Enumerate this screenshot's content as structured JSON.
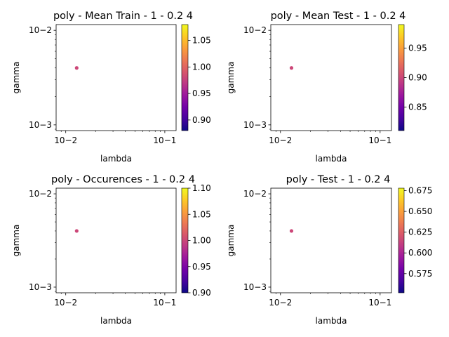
{
  "figure": {
    "background": "#ffffff"
  },
  "colormap": {
    "name": "plasma",
    "stops": [
      "#0d0887",
      "#46039f",
      "#7201a8",
      "#9c179e",
      "#bd3786",
      "#d8576b",
      "#ed7953",
      "#fb9f3a",
      "#fdca26",
      "#f0f921"
    ]
  },
  "chart_data": [
    {
      "type": "scatter",
      "title": "poly - Mean Train - 1 - 0.2 4",
      "xlabel": "lambda",
      "ylabel": "gamma",
      "xscale": "log",
      "yscale": "log",
      "xlim": [
        0.008,
        0.13
      ],
      "ylim": [
        0.00087,
        0.0115
      ],
      "xticks": [
        {
          "value": 0.01,
          "label": "10−2"
        },
        {
          "value": 0.1,
          "label": "10−1"
        }
      ],
      "yticks": [
        {
          "value": 0.001,
          "label": "10−3"
        },
        {
          "value": 0.01,
          "label": "10−2"
        }
      ],
      "points": [
        {
          "x": 0.0129,
          "y": 0.004,
          "value": 0.98,
          "color": "#cc4778"
        }
      ],
      "colorbar": {
        "range": [
          0.88,
          1.08
        ],
        "ticks": [
          {
            "value": 0.9,
            "label": "0.90"
          },
          {
            "value": 0.95,
            "label": "0.95"
          },
          {
            "value": 1.0,
            "label": "1.00"
          },
          {
            "value": 1.05,
            "label": "1.05"
          }
        ]
      }
    },
    {
      "type": "scatter",
      "title": "poly - Mean Test - 1 - 0.2 4",
      "xlabel": "lambda",
      "ylabel": "gamma",
      "xscale": "log",
      "yscale": "log",
      "xlim": [
        0.008,
        0.13
      ],
      "ylim": [
        0.00087,
        0.0115
      ],
      "xticks": [
        {
          "value": 0.01,
          "label": "10−2"
        },
        {
          "value": 0.1,
          "label": "10−1"
        }
      ],
      "yticks": [
        {
          "value": 0.001,
          "label": "10−3"
        },
        {
          "value": 0.01,
          "label": "10−2"
        }
      ],
      "points": [
        {
          "x": 0.0129,
          "y": 0.004,
          "value": 0.9,
          "color": "#cc4778"
        }
      ],
      "colorbar": {
        "range": [
          0.81,
          0.99
        ],
        "ticks": [
          {
            "value": 0.85,
            "label": "0.85"
          },
          {
            "value": 0.9,
            "label": "0.90"
          },
          {
            "value": 0.95,
            "label": "0.95"
          }
        ]
      }
    },
    {
      "type": "scatter",
      "title": "poly - Occurences - 1 - 0.2 4",
      "xlabel": "lambda",
      "ylabel": "gamma",
      "xscale": "log",
      "yscale": "log",
      "xlim": [
        0.008,
        0.13
      ],
      "ylim": [
        0.00087,
        0.0115
      ],
      "xticks": [
        {
          "value": 0.01,
          "label": "10−2"
        },
        {
          "value": 0.1,
          "label": "10−1"
        }
      ],
      "yticks": [
        {
          "value": 0.001,
          "label": "10−3"
        },
        {
          "value": 0.01,
          "label": "10−2"
        }
      ],
      "points": [
        {
          "x": 0.0129,
          "y": 0.004,
          "value": 1.0,
          "color": "#cc4778"
        }
      ],
      "colorbar": {
        "range": [
          0.9,
          1.1
        ],
        "ticks": [
          {
            "value": 0.9,
            "label": "0.90"
          },
          {
            "value": 0.95,
            "label": "0.95"
          },
          {
            "value": 1.0,
            "label": "1.00"
          },
          {
            "value": 1.05,
            "label": "1.05"
          },
          {
            "value": 1.1,
            "label": "1.10"
          }
        ]
      }
    },
    {
      "type": "scatter",
      "title": "poly - Test - 1 - 0.2 4",
      "xlabel": "lambda",
      "ylabel": "gamma",
      "xscale": "log",
      "yscale": "log",
      "xlim": [
        0.008,
        0.13
      ],
      "ylim": [
        0.00087,
        0.0115
      ],
      "xticks": [
        {
          "value": 0.01,
          "label": "10−2"
        },
        {
          "value": 0.1,
          "label": "10−1"
        }
      ],
      "yticks": [
        {
          "value": 0.001,
          "label": "10−3"
        },
        {
          "value": 0.01,
          "label": "10−2"
        }
      ],
      "points": [
        {
          "x": 0.0129,
          "y": 0.004,
          "value": 0.615,
          "color": "#cc4778"
        }
      ],
      "colorbar": {
        "range": [
          0.552,
          0.678
        ],
        "ticks": [
          {
            "value": 0.575,
            "label": "0.575"
          },
          {
            "value": 0.6,
            "label": "0.600"
          },
          {
            "value": 0.625,
            "label": "0.625"
          },
          {
            "value": 0.65,
            "label": "0.650"
          },
          {
            "value": 0.675,
            "label": "0.675"
          }
        ]
      }
    }
  ]
}
